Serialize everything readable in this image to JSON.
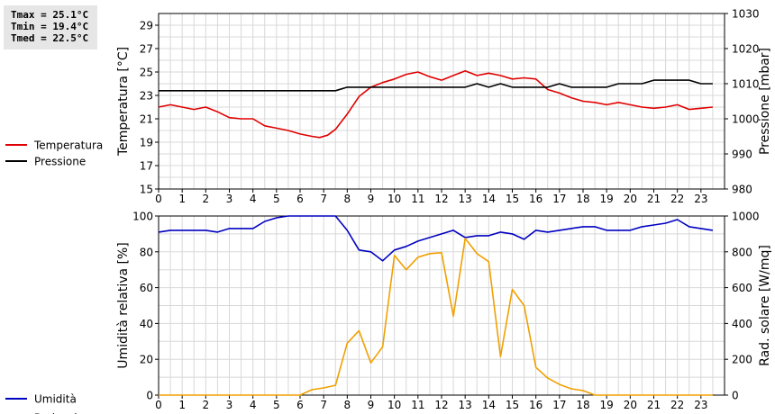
{
  "stats": {
    "tmax": "Tmax = 25.1°C",
    "tmin": "Tmin = 19.4°C",
    "tmed": "Tmed = 22.5°C"
  },
  "chart_data": [
    {
      "type": "line",
      "xticks": [
        "0",
        "1",
        "2",
        "3",
        "4",
        "5",
        "6",
        "7",
        "8",
        "9",
        "10",
        "11",
        "12",
        "13",
        "14",
        "15",
        "16",
        "17",
        "18",
        "19",
        "20",
        "21",
        "22",
        "23"
      ],
      "xlim": [
        0,
        24
      ],
      "ylabel_left": "Temperatura [°C]",
      "ylabel_right": "Pressione [mbar]",
      "ylim_left": [
        15,
        30
      ],
      "ylim_right": [
        980,
        1030
      ],
      "yticks_left": [
        15,
        17,
        19,
        21,
        23,
        25,
        27,
        29
      ],
      "yticks_right": [
        980,
        990,
        1000,
        1010,
        1020,
        1030
      ],
      "grid": true,
      "legend_position": "left",
      "series": [
        {
          "name": "Temperatura",
          "axis": "left",
          "color": "#e00000",
          "x": [
            0,
            0.5,
            1,
            1.5,
            2,
            2.5,
            3,
            3.5,
            4,
            4.5,
            5,
            5.5,
            6,
            6.5,
            6.83,
            7.17,
            7.5,
            8,
            8.5,
            9,
            9.5,
            10,
            10.5,
            11,
            11.5,
            12,
            12.5,
            13,
            13.5,
            14,
            14.5,
            15,
            15.5,
            16,
            16.5,
            17,
            17.5,
            18,
            18.5,
            19,
            19.5,
            20,
            20.5,
            21,
            21.5,
            22,
            22.5,
            23,
            23.5
          ],
          "y": [
            22.0,
            22.2,
            22.0,
            21.8,
            22.0,
            21.6,
            21.1,
            21.0,
            21.0,
            20.4,
            20.2,
            20.0,
            19.7,
            19.5,
            19.4,
            19.6,
            20.1,
            21.4,
            22.9,
            23.7,
            24.1,
            24.4,
            24.8,
            25.0,
            24.6,
            24.3,
            24.7,
            25.1,
            24.7,
            24.9,
            24.7,
            24.4,
            24.5,
            24.4,
            23.5,
            23.2,
            22.8,
            22.5,
            22.4,
            22.2,
            22.4,
            22.2,
            22.0,
            21.9,
            22.0,
            22.2,
            21.8,
            21.9,
            22.0
          ]
        },
        {
          "name": "Pressione",
          "axis": "right",
          "color": "#000000",
          "x": [
            0,
            7.5,
            8,
            13,
            13.5,
            14,
            14.5,
            15,
            16.5,
            17,
            17.5,
            19,
            19.5,
            20.5,
            21,
            22.5,
            23,
            23.5
          ],
          "y": [
            1008,
            1008,
            1009,
            1009,
            1010,
            1009,
            1010,
            1009,
            1009,
            1010,
            1009,
            1009,
            1010,
            1010,
            1011,
            1011,
            1010,
            1010
          ]
        }
      ]
    },
    {
      "type": "line",
      "xticks": [
        "0",
        "1",
        "2",
        "3",
        "4",
        "5",
        "6",
        "7",
        "8",
        "9",
        "10",
        "11",
        "12",
        "13",
        "14",
        "15",
        "16",
        "17",
        "18",
        "19",
        "20",
        "21",
        "22",
        "23"
      ],
      "xlim": [
        0,
        24
      ],
      "ylabel_left": "Umidità relativa [%]",
      "ylabel_right": "Rad. solare [W/mq]",
      "ylim_left": [
        0,
        100
      ],
      "ylim_right": [
        0,
        1000
      ],
      "yticks_left": [
        0,
        20,
        40,
        60,
        80,
        100
      ],
      "yticks_right": [
        0,
        200,
        400,
        600,
        800,
        1000
      ],
      "grid": true,
      "legend_position": "left",
      "series": [
        {
          "name": "Umidità",
          "axis": "left",
          "color": "#0000c0",
          "x": [
            0,
            0.5,
            1,
            2,
            2.5,
            3,
            4,
            4.5,
            5,
            5.5,
            6,
            6.5,
            7,
            7.5,
            8,
            8.5,
            9,
            9.5,
            10,
            10.5,
            11,
            11.5,
            12,
            12.5,
            13,
            13.5,
            14,
            14.5,
            15,
            15.5,
            16,
            16.5,
            17,
            17.5,
            18,
            18.5,
            19,
            19.5,
            20,
            20.5,
            21,
            21.5,
            22,
            22.5,
            23,
            23.5
          ],
          "y": [
            91,
            92,
            92,
            92,
            91,
            93,
            93,
            97,
            99,
            100,
            100,
            100,
            100,
            100,
            92,
            81,
            80,
            75,
            81,
            83,
            86,
            88,
            90,
            92,
            88,
            89,
            89,
            91,
            90,
            87,
            92,
            91,
            92,
            93,
            94,
            94,
            92,
            92,
            92,
            94,
            95,
            96,
            98,
            94,
            93,
            92
          ]
        },
        {
          "name": "Rad. sol.",
          "axis": "right",
          "color": "#f0a000",
          "x": [
            0,
            6,
            6.5,
            7,
            7.5,
            8,
            8.5,
            9,
            9.5,
            10,
            10.5,
            11,
            11.5,
            12,
            12.5,
            13,
            13.5,
            14,
            14.5,
            15,
            15.5,
            16,
            16.5,
            17,
            17.5,
            18,
            18.5,
            19,
            23.5
          ],
          "y": [
            0,
            0,
            30,
            40,
            55,
            290,
            360,
            180,
            270,
            780,
            700,
            770,
            790,
            795,
            440,
            875,
            790,
            745,
            215,
            590,
            500,
            155,
            95,
            60,
            35,
            25,
            0,
            0,
            0
          ]
        }
      ]
    }
  ]
}
